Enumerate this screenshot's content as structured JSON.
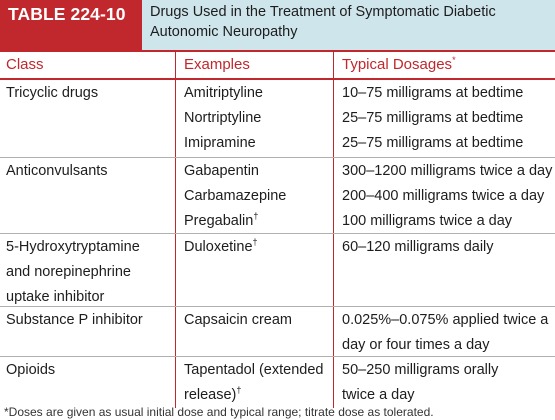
{
  "table_tag": "TABLE 224-10",
  "title_lines": [
    "Drugs Used in the Treatment of Symptomatic Diabetic",
    "Autonomic Neuropathy"
  ],
  "columns": {
    "class": "Class",
    "examples": "Examples",
    "dosages": "Typical Dosages",
    "dosages_mark": "*"
  },
  "rows": [
    {
      "class_lines": [
        "Tricyclic drugs"
      ],
      "examples": [
        {
          "text": "Amitriptyline",
          "mark": ""
        },
        {
          "text": "Nortriptyline",
          "mark": ""
        },
        {
          "text": "Imipramine",
          "mark": ""
        }
      ],
      "dosages": [
        "10–75 milligrams at bedtime",
        "25–75 milligrams at bedtime",
        "25–75 milligrams at bedtime"
      ]
    },
    {
      "class_lines": [
        "Anticonvulsants"
      ],
      "examples": [
        {
          "text": "Gabapentin",
          "mark": ""
        },
        {
          "text": "Carbamazepine",
          "mark": ""
        },
        {
          "text": "Pregabalin",
          "mark": "†"
        }
      ],
      "dosages": [
        "300–1200 milligrams twice a day",
        "200–400 milligrams twice a day",
        "100 milligrams twice a day"
      ]
    },
    {
      "class_lines": [
        "5-Hydroxytryptamine",
        "and norepinephrine",
        "uptake inhibitor"
      ],
      "examples": [
        {
          "text": "Duloxetine",
          "mark": "†"
        }
      ],
      "dosages": [
        "60–120 milligrams daily"
      ]
    },
    {
      "class_lines": [
        "Substance P inhibitor"
      ],
      "examples": [
        {
          "text": "Capsaicin cream",
          "mark": ""
        }
      ],
      "dosages": [
        "0.025%–0.075% applied twice a",
        "day or four times a day"
      ]
    },
    {
      "class_lines": [
        "Opioids"
      ],
      "examples": [
        {
          "text": "Tapentadol (extended",
          "mark": ""
        },
        {
          "text": "release)",
          "mark": "†"
        }
      ],
      "dosages": [
        "50–250 milligrams orally",
        "twice a day"
      ]
    }
  ],
  "footnote": "*Doses are given as usual initial dose and typical range; titrate dose as tolerated."
}
